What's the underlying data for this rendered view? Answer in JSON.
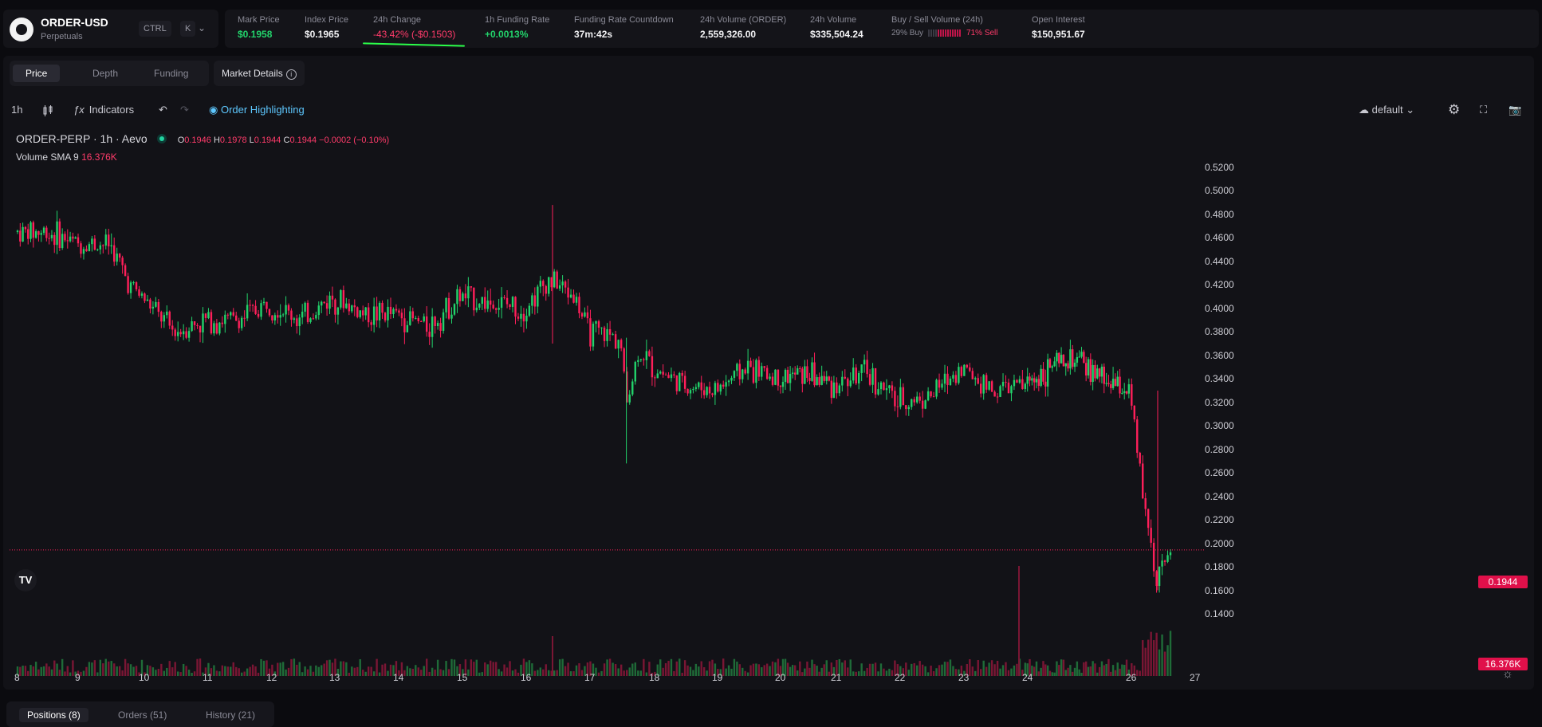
{
  "header": {
    "symbol": "ORDER-USD",
    "subtitle": "Perpetuals",
    "kbd1": "CTRL",
    "kbd2": "K",
    "stats": [
      {
        "label": "Mark Price",
        "value": "$0.1958"
      },
      {
        "label": "Index Price",
        "value": "$0.1965"
      },
      {
        "label": "24h Change",
        "value": "-43.42% (-$0.1503)"
      },
      {
        "label": "1h Funding Rate",
        "value": "+0.0013%"
      },
      {
        "label": "Funding Rate Countdown",
        "value": "37m:42s"
      },
      {
        "label": "24h Volume (ORDER)",
        "value": "2,559,326.00"
      },
      {
        "label": "24h Volume",
        "value": "$335,504.24"
      },
      {
        "label": "Buy / Sell Volume (24h)",
        "buy": "29% Buy",
        "sell": "71% Sell"
      },
      {
        "label": "Open Interest",
        "value": "$150,951.67"
      }
    ]
  },
  "chart_tabs": [
    "Price",
    "Depth",
    "Funding"
  ],
  "market_details": "Market Details",
  "toolbar": {
    "interval": "1h",
    "indicators": "Indicators",
    "order_highlighting": "Order Highlighting",
    "layout": "default"
  },
  "legend": {
    "title": "ORDER-PERP · 1h · Aevo",
    "o_label": "O",
    "o": "0.1946",
    "h_label": "H",
    "h": "0.1978",
    "l_label": "L",
    "l": "0.1944",
    "c_label": "C",
    "c": "0.1944",
    "change": "−0.0002 (−0.10%)",
    "volume_label": "Volume SMA 9",
    "volume_value": "16.376K"
  },
  "colors": {
    "up": "#22d36b",
    "down": "#ff1f5a",
    "accent": "#5ec8ff"
  },
  "chart_data": {
    "type": "candlestick",
    "interval": "1h",
    "symbol": "ORDER-PERP",
    "y_ticks": [
      "0.5200",
      "0.5000",
      "0.4800",
      "0.4600",
      "0.4400",
      "0.4200",
      "0.4000",
      "0.3800",
      "0.3600",
      "0.3400",
      "0.3200",
      "0.3000",
      "0.2800",
      "0.2600",
      "0.2400",
      "0.2200",
      "0.2000",
      "0.1800",
      "0.1600",
      "0.1400"
    ],
    "ylim": [
      0.14,
      0.52
    ],
    "x_ticks": [
      "8",
      "9",
      "10",
      "11",
      "12",
      "13",
      "14",
      "15",
      "16",
      "17",
      "18",
      "19",
      "20",
      "21",
      "22",
      "23",
      "24",
      "26",
      "27"
    ],
    "last_price": "0.1944",
    "volume_last": "16.376K",
    "approx_close_path": [
      [
        8,
        0.465
      ],
      [
        8.5,
        0.465
      ],
      [
        9,
        0.455
      ],
      [
        9.5,
        0.455
      ],
      [
        9.8,
        0.42
      ],
      [
        10,
        0.41
      ],
      [
        10.5,
        0.38
      ],
      [
        11,
        0.39
      ],
      [
        11.5,
        0.39
      ],
      [
        12,
        0.405
      ],
      [
        12.5,
        0.39
      ],
      [
        13,
        0.41
      ],
      [
        13.5,
        0.395
      ],
      [
        14,
        0.395
      ],
      [
        14.5,
        0.385
      ],
      [
        15,
        0.41
      ],
      [
        15.5,
        0.405
      ],
      [
        16,
        0.4
      ],
      [
        16.4,
        0.425
      ],
      [
        16.8,
        0.41
      ],
      [
        17,
        0.38
      ],
      [
        17.5,
        0.375
      ],
      [
        17.6,
        0.32
      ],
      [
        17.8,
        0.365
      ],
      [
        18,
        0.35
      ],
      [
        18.5,
        0.335
      ],
      [
        19,
        0.33
      ],
      [
        19.5,
        0.35
      ],
      [
        20,
        0.34
      ],
      [
        20.5,
        0.345
      ],
      [
        21,
        0.335
      ],
      [
        21.5,
        0.345
      ],
      [
        22,
        0.32
      ],
      [
        22.5,
        0.325
      ],
      [
        23,
        0.35
      ],
      [
        23.5,
        0.33
      ],
      [
        24,
        0.335
      ],
      [
        24.5,
        0.35
      ],
      [
        25,
        0.355
      ],
      [
        25.5,
        0.34
      ],
      [
        26,
        0.33
      ],
      [
        26.2,
        0.25
      ],
      [
        26.4,
        0.17
      ],
      [
        26.6,
        0.1944
      ]
    ]
  },
  "bottom_tabs": [
    "Positions (8)",
    "Orders (51)",
    "History (21)"
  ]
}
